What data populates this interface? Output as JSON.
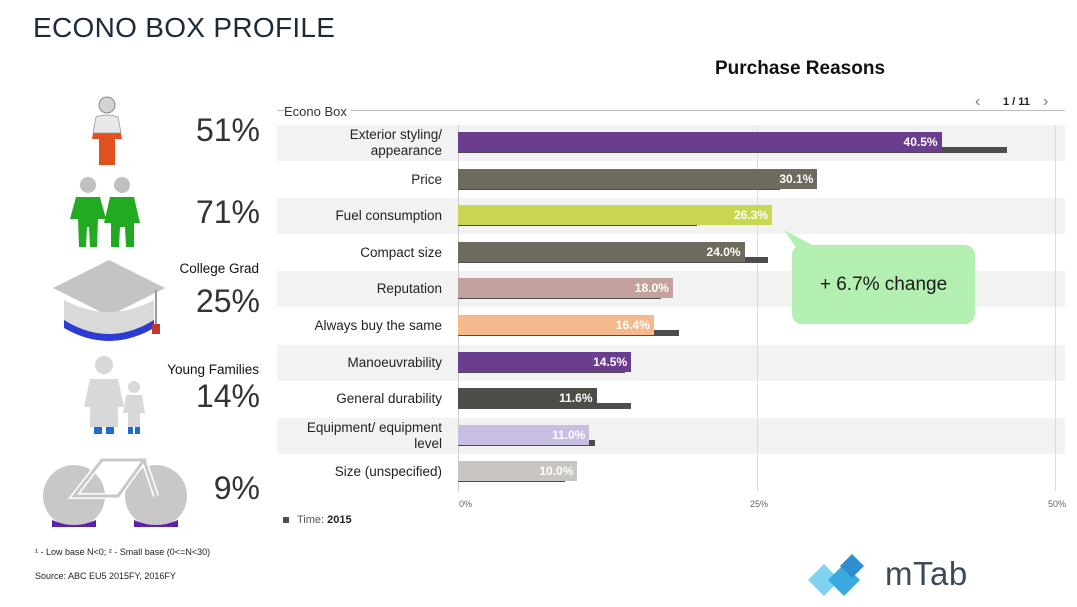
{
  "page": {
    "title": "ECONO BOX PROFILE",
    "footnote_base": "¹ - Low base N<0;   ² - Small base (0<=N<30)",
    "footnote_source": "Source: ABC EU5 2015FY, 2016FY",
    "brand": "mTab"
  },
  "profile": [
    {
      "id": "gender",
      "value": "51%",
      "label": ""
    },
    {
      "id": "couple",
      "value": "71%",
      "label": ""
    },
    {
      "id": "education",
      "value": "25%",
      "label": "College Grad"
    },
    {
      "id": "family",
      "value": "14%",
      "label": "Young Families"
    },
    {
      "id": "bike",
      "value": "9%",
      "label": ""
    }
  ],
  "pager": {
    "text": "1 / 11",
    "prev": "‹",
    "next": "›"
  },
  "callout": {
    "text": "+ 6.7% change"
  },
  "legend": {
    "label": "Time:",
    "value": "2015"
  },
  "colors": {
    "callout": "#b3efb1",
    "previous": "#4d4d4d",
    "row_stripe": "#f2f2f2"
  },
  "chart_data": {
    "type": "bar",
    "orientation": "horizontal",
    "title": "Purchase Reasons",
    "series_label": "Econo Box",
    "categories": [
      "Exterior styling/ appearance",
      "Price",
      "Fuel consumption",
      "Compact size",
      "Reputation",
      "Always buy the same",
      "Manoeuvrability",
      "General durability",
      "Equipment/ equipment level",
      "Size (unspecified)"
    ],
    "series": [
      {
        "values": [
          40.5,
          30.1,
          26.3,
          24.0,
          18.0,
          16.4,
          14.5,
          11.6,
          11.0,
          10.0
        ],
        "labels": [
          "40.5%",
          "30.1%",
          "26.3%",
          "24.0%",
          "18.0%",
          "16.4%",
          "14.5%",
          "11.6%",
          "11.0%",
          "10.0%"
        ],
        "colors": [
          "#6b3d8e",
          "#6e6a5e",
          "#c9d64f",
          "#6e6a5e",
          "#c3a29d",
          "#f5b98d",
          "#6b3d8e",
          "#4b4e46",
          "#c8bde3",
          "#c9c5c1"
        ]
      },
      {
        "name": "2015",
        "values": [
          46.0,
          27.0,
          20.0,
          26.0,
          17.0,
          18.5,
          14.0,
          14.5,
          11.5,
          9.0
        ]
      }
    ],
    "xlim": [
      0,
      50
    ],
    "xticks": [
      "0%",
      "25%",
      "50%"
    ],
    "grid": true,
    "legend_position": "bottom-left"
  }
}
